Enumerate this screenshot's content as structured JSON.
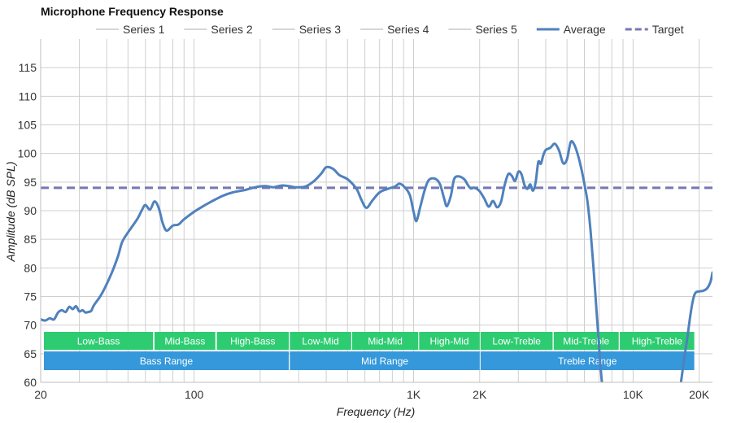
{
  "chart_data": {
    "type": "line",
    "title": "Microphone Frequency Response",
    "xlabel": "Frequency (Hz)",
    "ylabel": "Amplitude (dB SPL)",
    "x_scale": "log",
    "xlim": [
      20,
      23000
    ],
    "ylim": [
      60,
      120
    ],
    "y_ticks": [
      60,
      65,
      70,
      75,
      80,
      85,
      90,
      95,
      100,
      105,
      110,
      115
    ],
    "x_tick_labels": [
      {
        "value": 20,
        "label": "20"
      },
      {
        "value": 100,
        "label": "100"
      },
      {
        "value": 1000,
        "label": "1K"
      },
      {
        "value": 2000,
        "label": "2K"
      },
      {
        "value": 10000,
        "label": "10K"
      },
      {
        "value": 20000,
        "label": "20K"
      }
    ],
    "x_gridlines": [
      20,
      30,
      40,
      50,
      60,
      70,
      80,
      90,
      100,
      200,
      300,
      400,
      500,
      600,
      700,
      800,
      900,
      1000,
      2000,
      3000,
      4000,
      5000,
      6000,
      7000,
      8000,
      9000,
      10000,
      20000
    ],
    "legend": [
      {
        "name": "Series 1",
        "style": "thin-gray"
      },
      {
        "name": "Series 2",
        "style": "thin-gray"
      },
      {
        "name": "Series 3",
        "style": "thin-gray"
      },
      {
        "name": "Series 4",
        "style": "thin-gray"
      },
      {
        "name": "Series 5",
        "style": "thin-gray"
      },
      {
        "name": "Average",
        "style": "solid-blue"
      },
      {
        "name": "Target",
        "style": "dashed-purple"
      }
    ],
    "target": {
      "name": "Target",
      "value": 94
    },
    "average": {
      "name": "Average",
      "points": [
        [
          20,
          71.0
        ],
        [
          21,
          70.8
        ],
        [
          22,
          71.2
        ],
        [
          23,
          71.0
        ],
        [
          24,
          72.2
        ],
        [
          25,
          72.6
        ],
        [
          26,
          72.3
        ],
        [
          27,
          73.2
        ],
        [
          28,
          72.8
        ],
        [
          29,
          73.3
        ],
        [
          30,
          72.4
        ],
        [
          31,
          72.6
        ],
        [
          32,
          72.2
        ],
        [
          33,
          72.3
        ],
        [
          34,
          72.5
        ],
        [
          35,
          73.5
        ],
        [
          38,
          75.5
        ],
        [
          42,
          79
        ],
        [
          45,
          82
        ],
        [
          47,
          84.5
        ],
        [
          50,
          86.2
        ],
        [
          55,
          88.5
        ],
        [
          58,
          90.2
        ],
        [
          60,
          91.0
        ],
        [
          63,
          90.2
        ],
        [
          66,
          91.6
        ],
        [
          69,
          90.5
        ],
        [
          72,
          87.8
        ],
        [
          75,
          86.5
        ],
        [
          80,
          87.4
        ],
        [
          85,
          87.6
        ],
        [
          90,
          88.5
        ],
        [
          100,
          89.8
        ],
        [
          110,
          90.8
        ],
        [
          120,
          91.6
        ],
        [
          135,
          92.6
        ],
        [
          150,
          93.2
        ],
        [
          170,
          93.6
        ],
        [
          190,
          94.1
        ],
        [
          210,
          94.3
        ],
        [
          230,
          94.1
        ],
        [
          250,
          94.4
        ],
        [
          270,
          94.3
        ],
        [
          290,
          94.1
        ],
        [
          320,
          94.2
        ],
        [
          350,
          95.1
        ],
        [
          380,
          96.5
        ],
        [
          400,
          97.6
        ],
        [
          430,
          97.3
        ],
        [
          460,
          96.2
        ],
        [
          500,
          95.5
        ],
        [
          550,
          93.8
        ],
        [
          580,
          91.8
        ],
        [
          610,
          90.5
        ],
        [
          650,
          91.8
        ],
        [
          700,
          93.2
        ],
        [
          760,
          93.8
        ],
        [
          820,
          94.2
        ],
        [
          860,
          94.7
        ],
        [
          900,
          94.3
        ],
        [
          960,
          92.8
        ],
        [
          1000,
          89.8
        ],
        [
          1030,
          88.2
        ],
        [
          1070,
          90.5
        ],
        [
          1120,
          93.4
        ],
        [
          1170,
          95.3
        ],
        [
          1250,
          95.6
        ],
        [
          1320,
          94.6
        ],
        [
          1380,
          92
        ],
        [
          1420,
          90.8
        ],
        [
          1480,
          92.7
        ],
        [
          1530,
          95.5
        ],
        [
          1600,
          96
        ],
        [
          1700,
          95.5
        ],
        [
          1760,
          94.6
        ],
        [
          1820,
          93.9
        ],
        [
          1900,
          94
        ],
        [
          2000,
          93.4
        ],
        [
          2100,
          92.1
        ],
        [
          2200,
          90.7
        ],
        [
          2300,
          91.7
        ],
        [
          2400,
          90.6
        ],
        [
          2500,
          91.5
        ],
        [
          2600,
          94.5
        ],
        [
          2700,
          96.4
        ],
        [
          2800,
          96.1
        ],
        [
          2900,
          95.2
        ],
        [
          3000,
          96.8
        ],
        [
          3100,
          96.4
        ],
        [
          3200,
          94.5
        ],
        [
          3300,
          93.8
        ],
        [
          3400,
          94.6
        ],
        [
          3500,
          93.5
        ],
        [
          3600,
          95
        ],
        [
          3700,
          98.5
        ],
        [
          3800,
          98.2
        ],
        [
          3900,
          99.7
        ],
        [
          4000,
          100.6
        ],
        [
          4200,
          101
        ],
        [
          4400,
          101.7
        ],
        [
          4600,
          100.5
        ],
        [
          4800,
          98.3
        ],
        [
          5000,
          99
        ],
        [
          5200,
          102
        ],
        [
          5400,
          101.5
        ],
        [
          5600,
          99.8
        ],
        [
          5800,
          97.5
        ],
        [
          6000,
          94.7
        ],
        [
          6200,
          91.5
        ],
        [
          6400,
          86.5
        ],
        [
          6600,
          80
        ],
        [
          6800,
          73
        ],
        [
          6950,
          68
        ],
        [
          7080,
          63.5
        ],
        [
          7150,
          61.5
        ],
        [
          7220,
          59.8
        ]
      ],
      "points_tail": [
        [
          16500,
          59.8
        ],
        [
          16800,
          62
        ],
        [
          17200,
          64.8
        ],
        [
          17700,
          68
        ],
        [
          18200,
          71.5
        ],
        [
          18800,
          74.6
        ],
        [
          19300,
          75.7
        ],
        [
          20000,
          75.9
        ],
        [
          20800,
          76
        ],
        [
          21700,
          76.4
        ],
        [
          22500,
          77.5
        ],
        [
          23000,
          79.2
        ]
      ]
    },
    "range_bands": [
      {
        "label": "Low-Bass",
        "from": 20,
        "to": 65,
        "row": 1
      },
      {
        "label": "Mid-Bass",
        "from": 66,
        "to": 125,
        "row": 1
      },
      {
        "label": "High-Bass",
        "from": 127,
        "to": 270,
        "row": 1
      },
      {
        "label": "Low-Mid",
        "from": 273,
        "to": 520,
        "row": 1
      },
      {
        "label": "Mid-Mid",
        "from": 525,
        "to": 1050,
        "row": 1
      },
      {
        "label": "High-Mid",
        "from": 1060,
        "to": 2000,
        "row": 1
      },
      {
        "label": "Low-Treble",
        "from": 2020,
        "to": 4300,
        "row": 1
      },
      {
        "label": "Mid-Treble",
        "from": 4350,
        "to": 8600,
        "row": 1
      },
      {
        "label": "High-Treble",
        "from": 8700,
        "to": 19000,
        "row": 1
      },
      {
        "label": "Bass Range",
        "from": 20,
        "to": 270,
        "row": 2
      },
      {
        "label": "Mid Range",
        "from": 273,
        "to": 2000,
        "row": 2
      },
      {
        "label": "Treble Range",
        "from": 2020,
        "to": 19000,
        "row": 2
      }
    ],
    "colors": {
      "average": "#4f81bd",
      "target": "#7777b5",
      "series": "#c8c8c8",
      "band_row1": "#2ecc71",
      "band_row2": "#3498db",
      "grid": "#cfcfcf"
    }
  }
}
